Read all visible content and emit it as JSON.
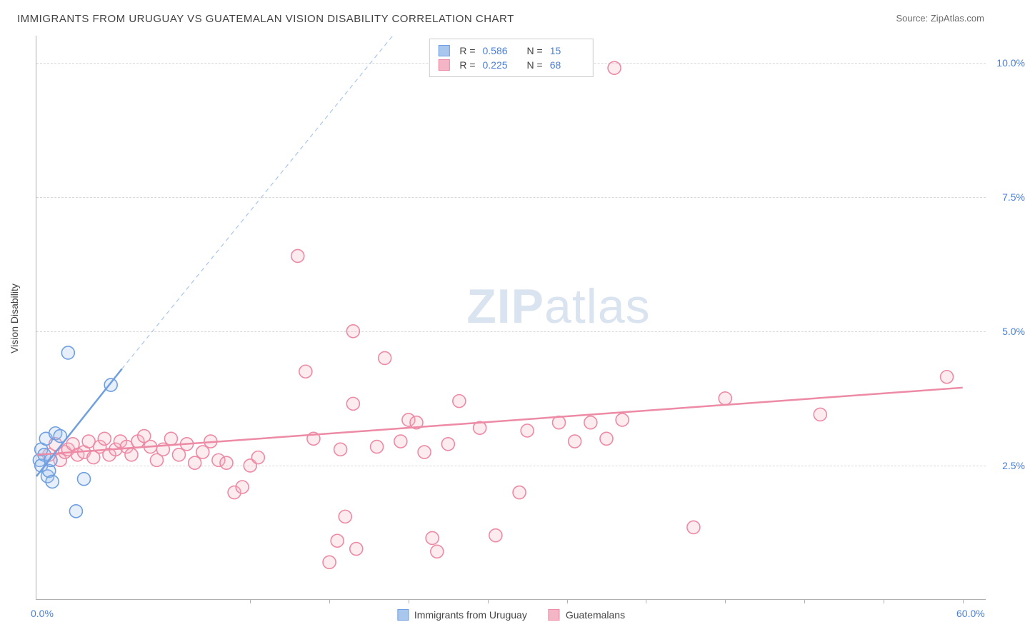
{
  "title": "IMMIGRANTS FROM URUGUAY VS GUATEMALAN VISION DISABILITY CORRELATION CHART",
  "source_label": "Source: ",
  "source_name": "ZipAtlas.com",
  "watermark": {
    "bold": "ZIP",
    "light": "atlas"
  },
  "y_axis_label": "Vision Disability",
  "chart": {
    "type": "scatter",
    "background_color": "#ffffff",
    "grid_color": "#d8d8d8",
    "axis_color": "#b0b0b0",
    "xlim": [
      0,
      60
    ],
    "ylim": [
      0,
      10.5
    ],
    "x_ticks": [
      {
        "pos": 0,
        "label": "0.0%"
      },
      {
        "pos": 60,
        "label": "60.0%"
      }
    ],
    "x_minor_ticks": [
      13.5,
      18.5,
      23.5,
      28.5,
      33.5,
      38.5,
      43.5,
      48.5,
      53.5,
      58.5
    ],
    "y_ticks": [
      {
        "pos": 2.5,
        "label": "2.5%"
      },
      {
        "pos": 5.0,
        "label": "5.0%"
      },
      {
        "pos": 7.5,
        "label": "7.5%"
      },
      {
        "pos": 10.0,
        "label": "10.0%"
      }
    ],
    "marker_radius": 9,
    "marker_stroke_width": 1.6,
    "marker_fill_opacity": 0.28,
    "series": [
      {
        "key": "uruguay",
        "label": "Immigrants from Uruguay",
        "color_stroke": "#6f9fe0",
        "color_fill": "#a9c6ed",
        "r_value": "0.586",
        "n_value": "15",
        "points": [
          [
            0.2,
            2.6
          ],
          [
            0.3,
            2.5
          ],
          [
            0.3,
            2.8
          ],
          [
            0.5,
            2.7
          ],
          [
            0.6,
            3.0
          ],
          [
            0.7,
            2.3
          ],
          [
            0.8,
            2.4
          ],
          [
            0.9,
            2.6
          ],
          [
            1.0,
            2.2
          ],
          [
            1.2,
            3.1
          ],
          [
            1.5,
            3.05
          ],
          [
            2.0,
            4.6
          ],
          [
            2.5,
            1.65
          ],
          [
            3.0,
            2.25
          ],
          [
            4.7,
            4.0
          ]
        ],
        "trend": {
          "x1": 0,
          "y1": 2.3,
          "x2": 5.4,
          "y2": 4.3,
          "width": 2.5,
          "dash": ""
        },
        "trend_ext": {
          "x1": 5.4,
          "y1": 4.3,
          "x2": 22.5,
          "y2": 10.5,
          "width": 1.2,
          "dash": "6,5"
        }
      },
      {
        "key": "guatemalans",
        "label": "Guatemalans",
        "color_stroke": "#ed8aa5",
        "color_fill": "#f4b6c6",
        "r_value": "0.225",
        "n_value": "68",
        "points": [
          [
            0.8,
            2.7
          ],
          [
            1.2,
            2.9
          ],
          [
            1.5,
            2.6
          ],
          [
            1.8,
            2.75
          ],
          [
            2.0,
            2.8
          ],
          [
            2.3,
            2.9
          ],
          [
            2.6,
            2.7
          ],
          [
            3.0,
            2.75
          ],
          [
            3.3,
            2.95
          ],
          [
            3.6,
            2.65
          ],
          [
            4.0,
            2.85
          ],
          [
            4.3,
            3.0
          ],
          [
            4.6,
            2.7
          ],
          [
            5.0,
            2.8
          ],
          [
            5.3,
            2.95
          ],
          [
            5.7,
            2.85
          ],
          [
            6.0,
            2.7
          ],
          [
            6.4,
            2.95
          ],
          [
            6.8,
            3.05
          ],
          [
            7.2,
            2.85
          ],
          [
            7.6,
            2.6
          ],
          [
            8.0,
            2.8
          ],
          [
            8.5,
            3.0
          ],
          [
            9.0,
            2.7
          ],
          [
            9.5,
            2.9
          ],
          [
            10.0,
            2.55
          ],
          [
            10.5,
            2.75
          ],
          [
            11.0,
            2.95
          ],
          [
            11.5,
            2.6
          ],
          [
            12.0,
            2.55
          ],
          [
            12.5,
            2.0
          ],
          [
            13.0,
            2.1
          ],
          [
            13.5,
            2.5
          ],
          [
            14.0,
            2.65
          ],
          [
            16.5,
            6.4
          ],
          [
            17.0,
            4.25
          ],
          [
            17.5,
            3.0
          ],
          [
            18.5,
            0.7
          ],
          [
            19.0,
            1.1
          ],
          [
            19.5,
            1.55
          ],
          [
            20.0,
            5.0
          ],
          [
            20.0,
            3.65
          ],
          [
            20.2,
            0.95
          ],
          [
            21.5,
            2.85
          ],
          [
            22.0,
            4.5
          ],
          [
            23.0,
            2.95
          ],
          [
            23.5,
            3.35
          ],
          [
            24.0,
            3.3
          ],
          [
            24.5,
            2.75
          ],
          [
            25.0,
            1.15
          ],
          [
            25.3,
            0.9
          ],
          [
            26.0,
            2.9
          ],
          [
            26.7,
            3.7
          ],
          [
            28.0,
            3.2
          ],
          [
            29.0,
            1.2
          ],
          [
            30.5,
            2.0
          ],
          [
            31.0,
            3.15
          ],
          [
            33.0,
            3.3
          ],
          [
            34.0,
            2.95
          ],
          [
            35.0,
            3.3
          ],
          [
            36.0,
            3.0
          ],
          [
            36.5,
            9.9
          ],
          [
            37.0,
            3.35
          ],
          [
            41.5,
            1.35
          ],
          [
            43.5,
            3.75
          ],
          [
            49.5,
            3.45
          ],
          [
            57.5,
            4.15
          ],
          [
            19.2,
            2.8
          ]
        ],
        "trend": {
          "x1": 0,
          "y1": 2.7,
          "x2": 58.5,
          "y2": 3.95,
          "width": 2.5,
          "dash": ""
        }
      }
    ]
  },
  "legend_top": {
    "r_label": "R =",
    "n_label": "N ="
  },
  "colors": {
    "tick_label": "#4b7fd6",
    "text": "#444444"
  }
}
